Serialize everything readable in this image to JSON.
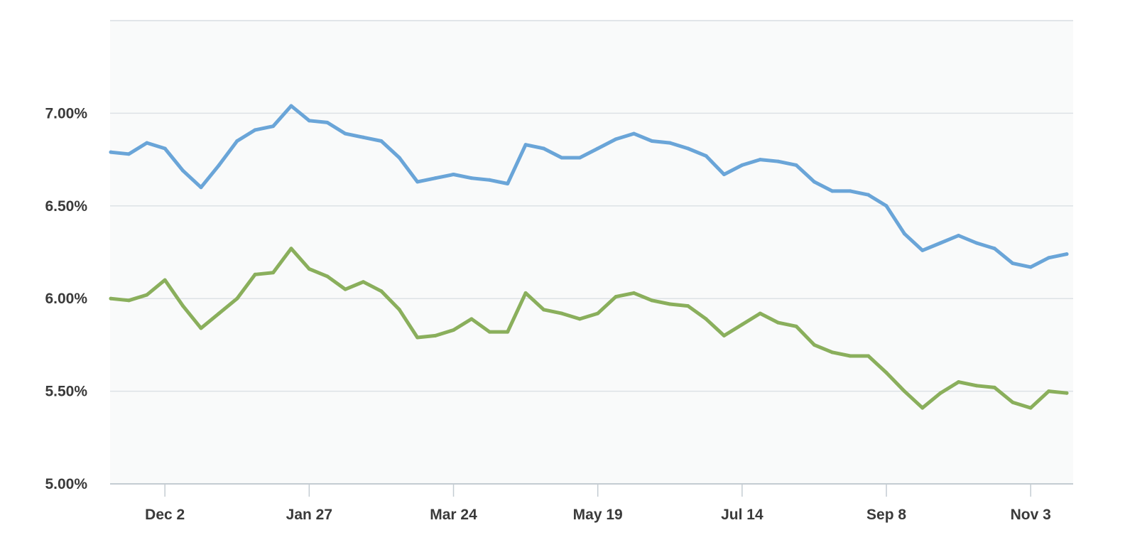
{
  "chart_data": {
    "type": "line",
    "title": "",
    "xlabel": "",
    "ylabel": "",
    "ylim": [
      5.0,
      7.5
    ],
    "y_ticks": [
      "5.00%",
      "5.50%",
      "6.00%",
      "6.50%",
      "7.00%"
    ],
    "y_tick_values": [
      5.0,
      5.5,
      6.0,
      6.5,
      7.0
    ],
    "x_ticks": [
      "Dec 2",
      "Jan 27",
      "Mar 24",
      "May 19",
      "Jul 14",
      "Sep 8",
      "Nov 3"
    ],
    "x_tick_positions": [
      3,
      11,
      19,
      27,
      35,
      43,
      51
    ],
    "x_count": 54,
    "grid": true,
    "legend": "none",
    "series": [
      {
        "color": "#6aa5d8",
        "values": [
          6.79,
          6.78,
          6.84,
          6.81,
          6.69,
          6.6,
          6.72,
          6.85,
          6.91,
          6.93,
          7.04,
          6.96,
          6.95,
          6.89,
          6.87,
          6.85,
          6.76,
          6.63,
          6.65,
          6.67,
          6.65,
          6.64,
          6.62,
          6.83,
          6.81,
          6.76,
          6.76,
          6.81,
          6.86,
          6.89,
          6.85,
          6.84,
          6.81,
          6.77,
          6.67,
          6.72,
          6.75,
          6.74,
          6.72,
          6.63,
          6.58,
          6.58,
          6.56,
          6.5,
          6.35,
          6.26,
          6.3,
          6.34,
          6.3,
          6.27,
          6.19,
          6.17,
          6.22,
          6.24
        ]
      },
      {
        "color": "#8aaf5c",
        "values": [
          6.0,
          5.99,
          6.02,
          6.1,
          5.96,
          5.84,
          5.92,
          6.0,
          6.13,
          6.14,
          6.27,
          6.16,
          6.12,
          6.05,
          6.09,
          6.04,
          5.94,
          5.79,
          5.8,
          5.83,
          5.89,
          5.82,
          5.82,
          6.03,
          5.94,
          5.92,
          5.89,
          5.92,
          6.01,
          6.03,
          5.99,
          5.97,
          5.96,
          5.89,
          5.8,
          5.86,
          5.92,
          5.87,
          5.85,
          5.75,
          5.71,
          5.69,
          5.69,
          5.6,
          5.5,
          5.41,
          5.49,
          5.55,
          5.53,
          5.52,
          5.44,
          5.41,
          5.5,
          5.49
        ]
      }
    ]
  }
}
